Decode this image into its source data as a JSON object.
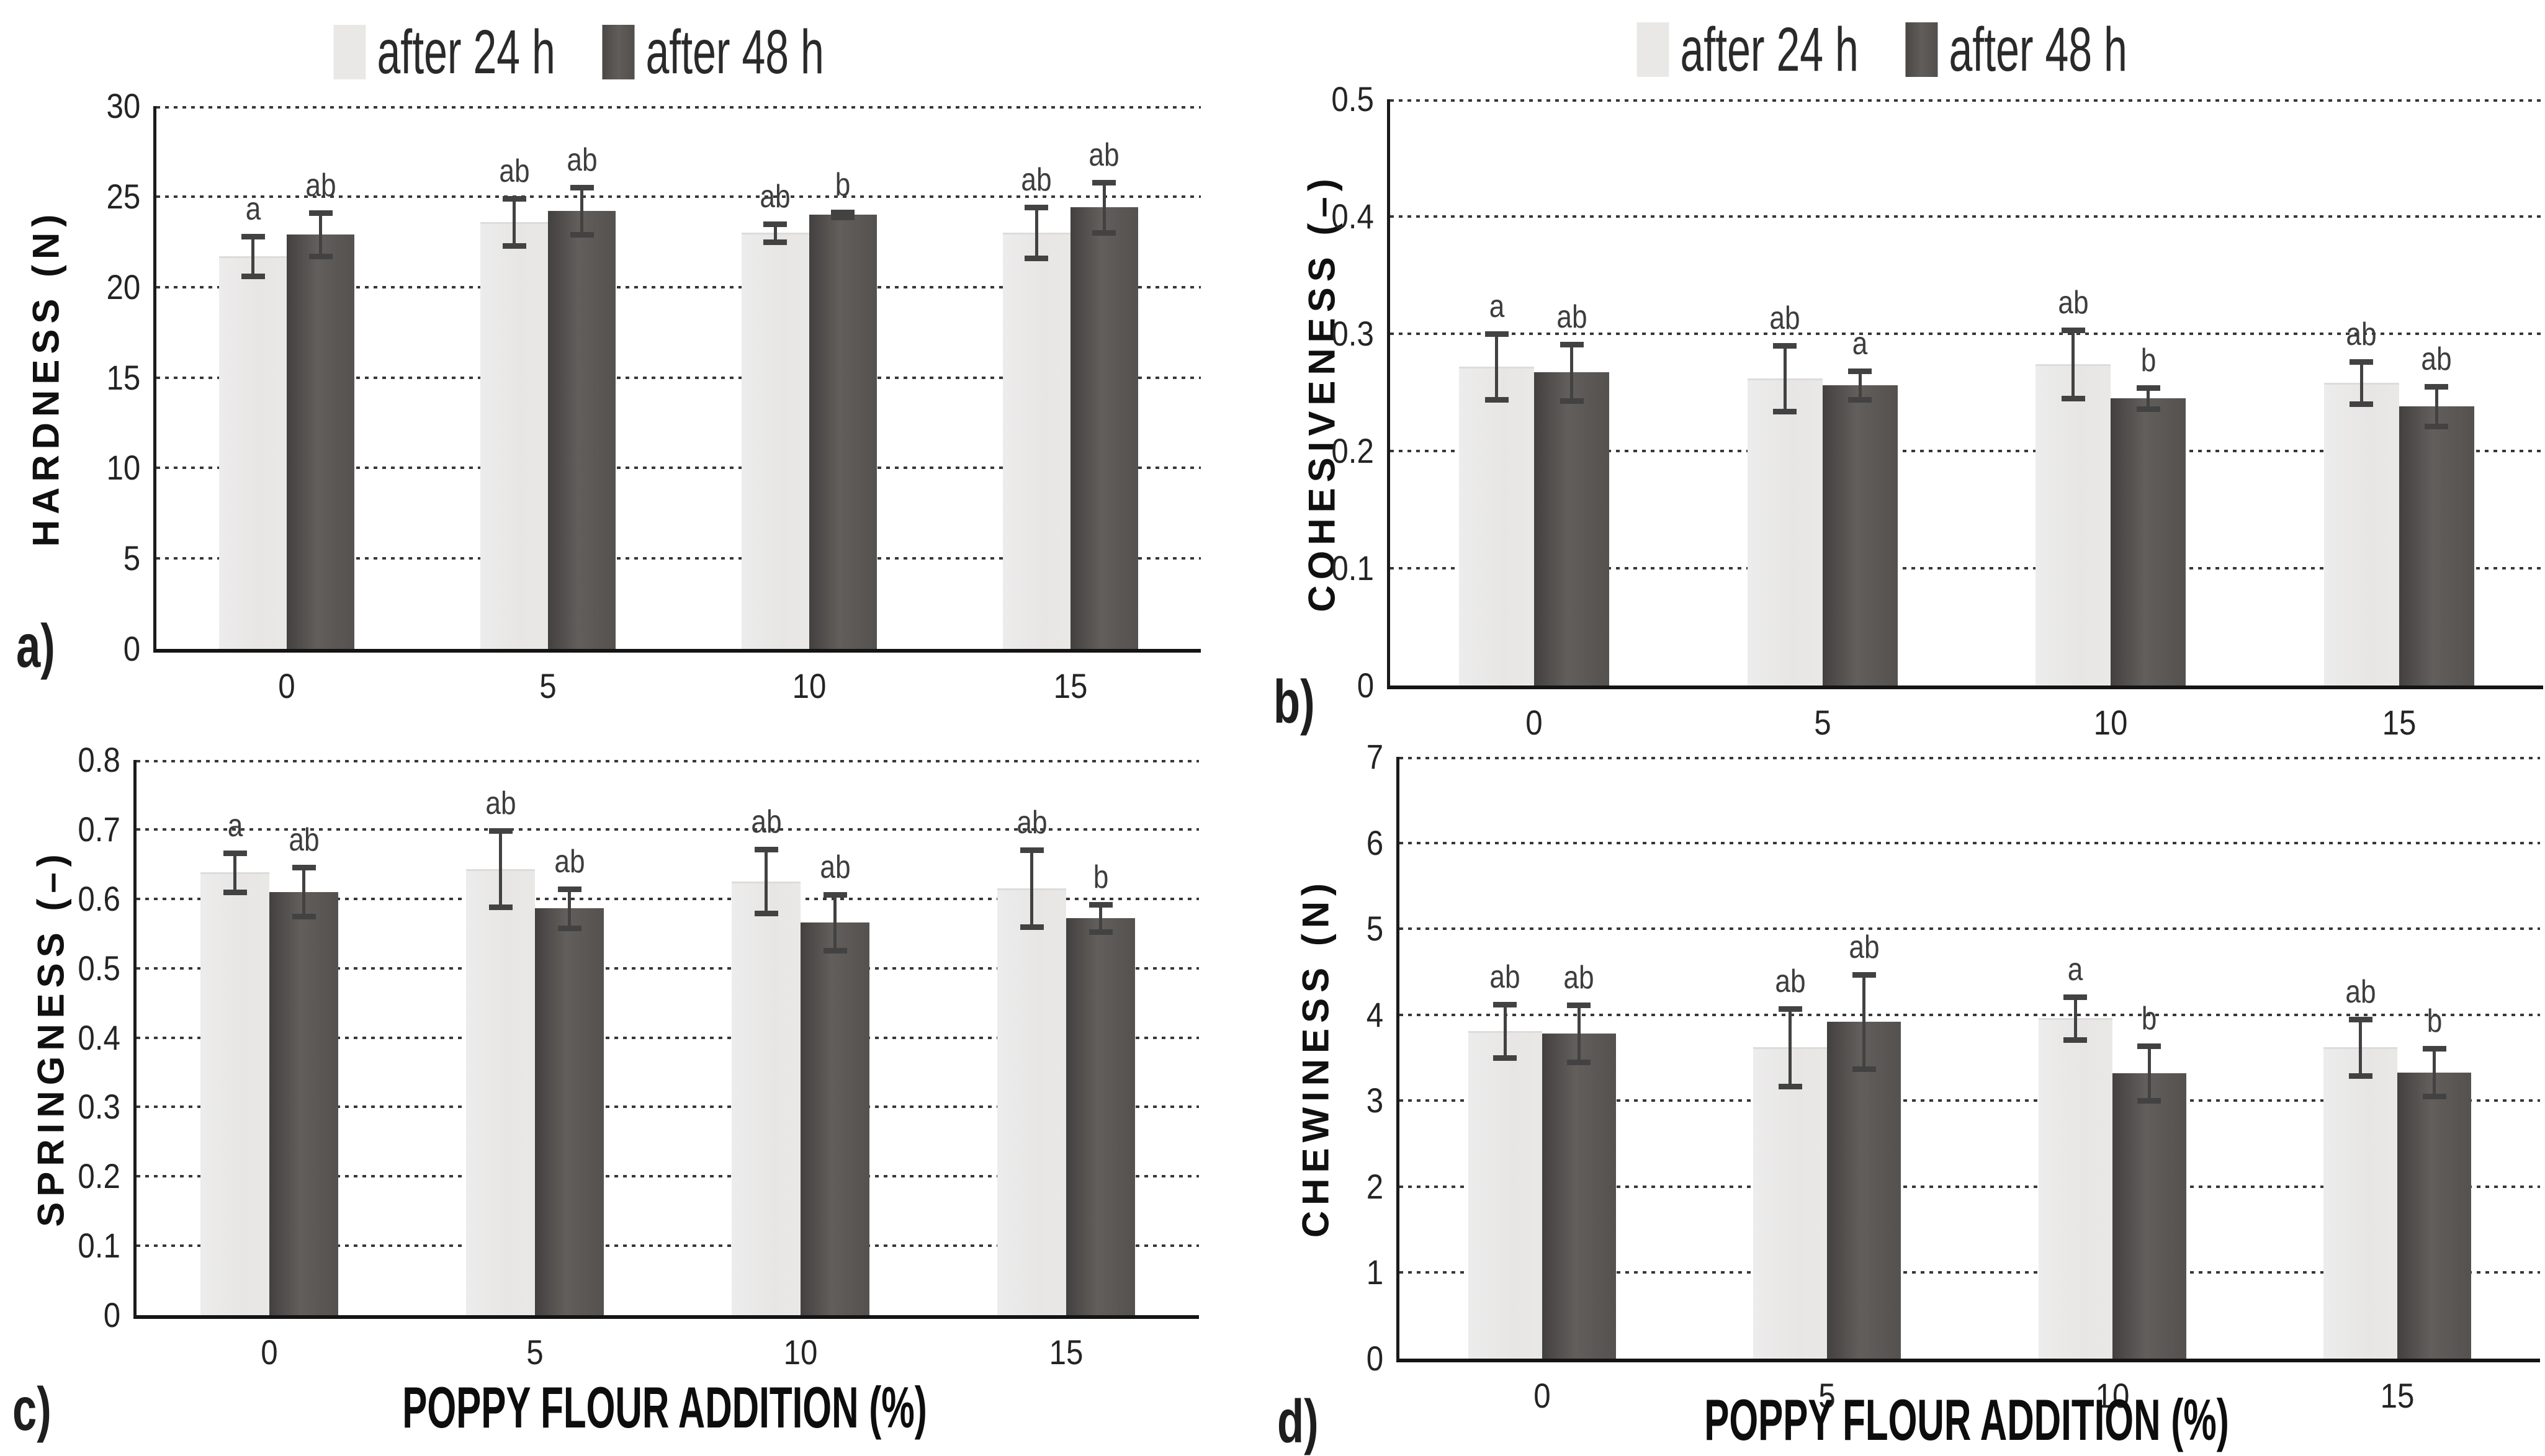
{
  "figure": {
    "background_color": "#ffffff",
    "legend": {
      "position": "top",
      "items": [
        {
          "label": "after 24 h",
          "color": "#e9e8e7"
        },
        {
          "label": "after 48 h",
          "color": "#575351"
        }
      ]
    }
  },
  "chart_data": [
    {
      "type": "bar",
      "panel_letter": "a)",
      "ylabel": "HARDNESS (N)",
      "ylim": [
        0,
        30
      ],
      "ytick_step": 5,
      "ytick_labels": [
        "0",
        "5",
        "10",
        "15",
        "20",
        "25",
        "30"
      ],
      "categories": [
        "0",
        "5",
        "10",
        "15"
      ],
      "grid": "horizontal-dotted",
      "legend_visible": true,
      "series": [
        {
          "name": "after 24 h",
          "values": [
            21.7,
            23.6,
            23.0,
            23.0
          ],
          "errors": [
            1.1,
            1.3,
            0.5,
            1.4
          ],
          "sig_letters": [
            "a",
            "ab",
            "ab",
            "ab"
          ]
        },
        {
          "name": "after 48 h",
          "values": [
            22.9,
            24.2,
            24.0,
            24.4
          ],
          "errors": [
            1.2,
            1.3,
            0.15,
            1.4
          ],
          "sig_letters": [
            "ab",
            "ab",
            "b",
            "ab"
          ]
        }
      ]
    },
    {
      "type": "bar",
      "panel_letter": "b)",
      "ylabel": "COHESIVENESS (–)",
      "ylim": [
        0,
        0.5
      ],
      "ytick_step": 0.1,
      "ytick_labels": [
        "0",
        "0.1",
        "0.2",
        "0.3",
        "0.4",
        "0.5"
      ],
      "categories": [
        "0",
        "5",
        "10",
        "15"
      ],
      "grid": "horizontal-dotted",
      "legend_visible": true,
      "series": [
        {
          "name": "after 24 h",
          "values": [
            0.272,
            0.262,
            0.274,
            0.258
          ],
          "errors": [
            0.028,
            0.028,
            0.029,
            0.018
          ],
          "sig_letters": [
            "a",
            "ab",
            "ab",
            "ab"
          ]
        },
        {
          "name": "after 48 h",
          "values": [
            0.267,
            0.256,
            0.245,
            0.238
          ],
          "errors": [
            0.024,
            0.012,
            0.009,
            0.017
          ],
          "sig_letters": [
            "ab",
            "a",
            "b",
            "ab"
          ]
        }
      ]
    },
    {
      "type": "bar",
      "panel_letter": "c)",
      "ylabel": "SPRINGNESS (–)",
      "xlabel": "POPPY FLOUR ADDITION (%)",
      "ylim": [
        0,
        0.8
      ],
      "ytick_step": 0.1,
      "ytick_labels": [
        "0",
        "0.1",
        "0.2",
        "0.3",
        "0.4",
        "0.5",
        "0.6",
        "0.7",
        "0.8"
      ],
      "categories": [
        "0",
        "5",
        "10",
        "15"
      ],
      "grid": "horizontal-dotted",
      "legend_visible": false,
      "series": [
        {
          "name": "after 24 h",
          "values": [
            0.638,
            0.643,
            0.625,
            0.615
          ],
          "errors": [
            0.028,
            0.055,
            0.046,
            0.055
          ],
          "sig_letters": [
            "a",
            "ab",
            "ab",
            "ab"
          ]
        },
        {
          "name": "after 48 h",
          "values": [
            0.61,
            0.586,
            0.566,
            0.572
          ],
          "errors": [
            0.035,
            0.028,
            0.04,
            0.02
          ],
          "sig_letters": [
            "ab",
            "ab",
            "ab",
            "b"
          ]
        }
      ]
    },
    {
      "type": "bar",
      "panel_letter": "d)",
      "ylabel": "CHEWINESS (N)",
      "xlabel": "POPPY FLOUR ADDITION (%)",
      "ylim": [
        0,
        7
      ],
      "ytick_step": 1,
      "ytick_labels": [
        "0",
        "1",
        "2",
        "3",
        "4",
        "5",
        "6",
        "7"
      ],
      "categories": [
        "0",
        "5",
        "10",
        "15"
      ],
      "grid": "horizontal-dotted",
      "legend_visible": false,
      "series": [
        {
          "name": "after 24 h",
          "values": [
            3.81,
            3.62,
            3.96,
            3.62
          ],
          "errors": [
            0.31,
            0.45,
            0.25,
            0.33
          ],
          "sig_letters": [
            "ab",
            "ab",
            "a",
            "ab"
          ]
        },
        {
          "name": "after 48 h",
          "values": [
            3.78,
            3.92,
            3.32,
            3.33
          ],
          "errors": [
            0.33,
            0.55,
            0.32,
            0.28
          ],
          "sig_letters": [
            "ab",
            "ab",
            "b",
            "b"
          ]
        }
      ]
    }
  ]
}
